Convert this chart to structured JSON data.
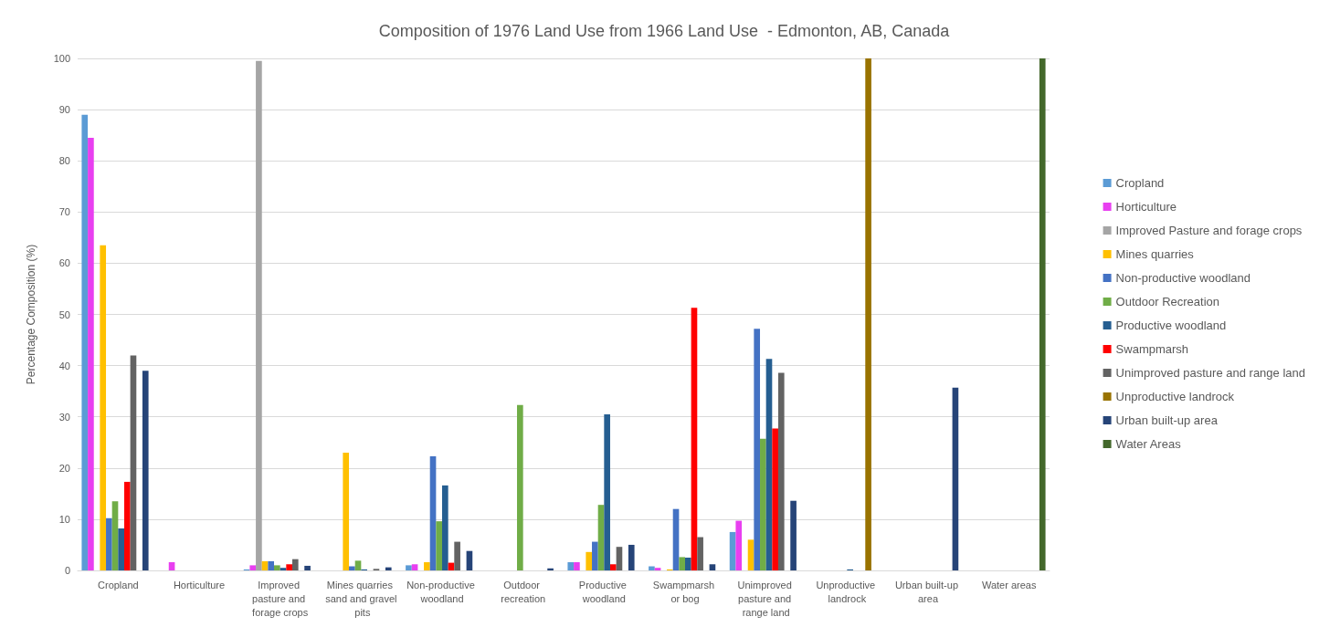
{
  "chart_data": {
    "type": "bar",
    "title": "Composition of 1976 Land Use from 1966 Land Use  - Edmonton, AB, Canada",
    "ylabel": "Percentage Composition (%)",
    "categories": [
      "Cropland",
      "Horticulture",
      "Improved pasture and forage crops",
      "Mines quarries sand and gravel pits",
      "Non-productive woodland",
      "Outdoor recreation",
      "Productive woodland",
      "Swampmarsh or bog",
      "Unimproved pasture and range land",
      "Unproductive landrock",
      "Urban built-up area",
      "Water areas"
    ],
    "series": [
      {
        "name": "Cropland",
        "color": "#5b9bd5",
        "values": [
          89,
          0,
          0.2,
          0,
          1,
          0,
          1.6,
          0.8,
          7.5,
          0,
          0,
          0
        ]
      },
      {
        "name": "Horticulture",
        "color": "#e83ff0",
        "values": [
          84.5,
          1.6,
          1,
          0,
          1.2,
          0,
          1.6,
          0.5,
          9.7,
          0,
          0,
          0
        ]
      },
      {
        "name": "Improved Pasture and forage crops",
        "color": "#a5a5a5",
        "values": [
          0,
          0,
          99.5,
          0,
          0,
          0,
          0,
          0,
          null,
          0,
          0,
          0
        ]
      },
      {
        "name": "Mines quarries",
        "color": "#ffc000",
        "values": [
          63.5,
          0,
          1.8,
          23,
          1.6,
          0,
          3.6,
          0.2,
          6,
          0,
          0,
          0
        ]
      },
      {
        "name": "Non-productive woodland",
        "color": "#4472c4",
        "values": [
          10.2,
          0,
          1.8,
          0.8,
          22.3,
          0,
          5.6,
          12,
          47.2,
          0,
          0,
          0
        ]
      },
      {
        "name": "Outdoor Recreation",
        "color": "#70ad47",
        "values": [
          13.5,
          0,
          1,
          1.9,
          9.6,
          32.3,
          12.8,
          2.6,
          25.7,
          0,
          0,
          0
        ]
      },
      {
        "name": "Productive woodland",
        "color": "#255e91",
        "values": [
          8.2,
          0,
          0.5,
          0.2,
          16.6,
          0,
          30.5,
          2.5,
          41.3,
          0.2,
          0,
          0
        ]
      },
      {
        "name": "Swampmarsh",
        "color": "#ff0000",
        "values": [
          17.3,
          0,
          1.2,
          0,
          1.5,
          0,
          1.2,
          51.3,
          27.7,
          0,
          0,
          0
        ]
      },
      {
        "name": "Unimproved pasture and range land",
        "color": "#636363",
        "values": [
          42,
          0,
          2.2,
          0.3,
          5.6,
          0,
          4.6,
          6.5,
          38.6,
          0,
          0,
          0
        ]
      },
      {
        "name": "Unproductive landrock",
        "color": "#997300",
        "values": [
          0,
          0,
          0,
          0,
          0,
          0,
          0,
          0,
          0,
          100,
          0,
          0
        ]
      },
      {
        "name": "Urban built-up area",
        "color": "#264478",
        "values": [
          39,
          0,
          0.9,
          0.6,
          3.8,
          0.4,
          5,
          1.2,
          13.6,
          0,
          35.7,
          0
        ]
      },
      {
        "name": "Water Areas",
        "color": "#43682b",
        "values": [
          0,
          0,
          0,
          0,
          0,
          0,
          0,
          0,
          0,
          0,
          0,
          100
        ]
      }
    ],
    "ylim": [
      0,
      100
    ],
    "yticks": [
      0,
      10,
      20,
      30,
      40,
      50,
      60,
      70,
      80,
      90,
      100
    ],
    "grid": "y",
    "legend": "right"
  }
}
